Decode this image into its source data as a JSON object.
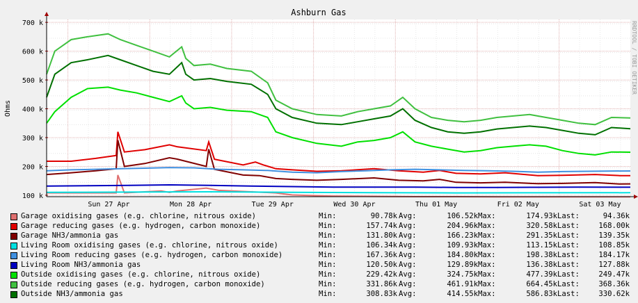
{
  "chart_data": {
    "type": "line",
    "title": "Ashburn Gas",
    "ylabel": "Ohms",
    "watermark": "RRDTOOL / TOBI OETIKER",
    "ylim": [
      95000,
      710000
    ],
    "ytick_values": [
      100000,
      200000,
      300000,
      400000,
      500000,
      600000,
      700000
    ],
    "ytick_labels": [
      "100 k",
      "200 k",
      "300 k",
      "400 k",
      "500 k",
      "600 k",
      "700 k"
    ],
    "xlim": [
      0,
      7.13
    ],
    "xtick_values": [
      0.76,
      1.76,
      2.76,
      3.76,
      4.76,
      5.76,
      6.76
    ],
    "xtick_labels": [
      "Sun 27 Apr",
      "Mon 28 Apr",
      "Tue 29 Apr",
      "Wed 30 Apr",
      "Thu 01 May",
      "Fri 02 May",
      "Sat 03 May"
    ],
    "grid": true,
    "stat_labels": [
      "Min:",
      "Avg:",
      "Max:",
      "Last:"
    ],
    "series": [
      {
        "name": "Garage oxidising gases (e.g. chlorine, nitrous oxide)",
        "color": "#e07070",
        "min": "90.78k",
        "avg": "106.52k",
        "max": "174.93k",
        "last": "94.36k",
        "x": [
          0,
          0.5,
          0.85,
          0.87,
          0.95,
          1.2,
          1.4,
          1.5,
          1.6,
          1.95,
          2.1,
          2.5,
          2.8,
          3.0,
          3.5,
          4.0,
          4.5,
          5.0,
          5.5,
          6.0,
          6.5,
          7.13
        ],
        "y": [
          108000,
          108000,
          108000,
          170000,
          108000,
          112000,
          115000,
          110000,
          115000,
          125000,
          117000,
          112000,
          108000,
          101000,
          97000,
          96000,
          95000,
          95000,
          94500,
          94500,
          94500,
          94360
        ]
      },
      {
        "name": "Garage reducing gases (e.g. hydrogen, carbon monoxide)",
        "color": "#e00000",
        "min": "157.74k",
        "avg": "204.96k",
        "max": "320.58k",
        "last": "168.00k",
        "x": [
          0,
          0.3,
          0.6,
          0.85,
          0.87,
          0.95,
          1.2,
          1.5,
          1.6,
          1.95,
          1.98,
          2.05,
          2.4,
          2.55,
          2.65,
          2.8,
          3.0,
          3.3,
          3.6,
          4.0,
          4.3,
          4.6,
          4.8,
          5.0,
          5.3,
          5.6,
          6.0,
          6.3,
          6.7,
          7.0,
          7.13
        ],
        "y": [
          218000,
          218000,
          228000,
          238000,
          320000,
          250000,
          258000,
          275000,
          268000,
          255000,
          285000,
          225000,
          205000,
          215000,
          205000,
          192000,
          188000,
          183000,
          185000,
          192000,
          185000,
          180000,
          186000,
          176000,
          174000,
          178000,
          168000,
          169000,
          172000,
          168000,
          168000
        ]
      },
      {
        "name": "Garage NH3/ammonia gas",
        "color": "#800000",
        "min": "131.80k",
        "avg": "166.23k",
        "max": "291.35k",
        "last": "139.35k",
        "x": [
          0,
          0.3,
          0.6,
          0.85,
          0.87,
          0.95,
          1.2,
          1.5,
          1.6,
          1.95,
          1.98,
          2.05,
          2.4,
          2.6,
          2.8,
          3.0,
          3.3,
          3.6,
          4.0,
          4.3,
          4.6,
          4.8,
          5.0,
          5.3,
          5.6,
          6.0,
          6.3,
          6.7,
          7.0,
          7.13
        ],
        "y": [
          172000,
          178000,
          185000,
          192000,
          291000,
          200000,
          210000,
          230000,
          225000,
          200000,
          260000,
          190000,
          170000,
          168000,
          158000,
          155000,
          152000,
          155000,
          160000,
          152000,
          150000,
          155000,
          145000,
          143000,
          145000,
          140000,
          141000,
          144000,
          139000,
          139350
        ]
      },
      {
        "name": "Living Room oxidising gases (e.g. chlorine, nitrous oxide)",
        "color": "#00e0e0",
        "min": "106.34k",
        "avg": "109.93k",
        "max": "113.15k",
        "last": "108.85k",
        "x": [
          0,
          1,
          2,
          3,
          4,
          5,
          6,
          7.13
        ],
        "y": [
          110000,
          111000,
          112000,
          110000,
          109000,
          108000,
          108500,
          108850
        ]
      },
      {
        "name": "Living Room reducing gases (e.g. hydrogen, carbon monoxide)",
        "color": "#4090e0",
        "min": "167.36k",
        "avg": "184.80k",
        "max": "198.38k",
        "last": "184.17k",
        "x": [
          0,
          0.3,
          0.6,
          0.9,
          1.2,
          1.5,
          1.8,
          2.1,
          2.4,
          2.7,
          3.0,
          3.3,
          3.6,
          3.9,
          4.2,
          4.5,
          4.8,
          5.1,
          5.4,
          5.7,
          6.0,
          6.3,
          6.6,
          6.9,
          7.13
        ],
        "y": [
          185000,
          188000,
          190000,
          192000,
          194000,
          196000,
          195000,
          190000,
          188000,
          186000,
          180000,
          178000,
          182000,
          185000,
          188000,
          190000,
          188000,
          186000,
          185000,
          183000,
          180000,
          182000,
          183000,
          184000,
          184170
        ]
      },
      {
        "name": "Living Room NH3/ammonia gas",
        "color": "#0000c0",
        "min": "120.50k",
        "avg": "129.89k",
        "max": "136.38k",
        "last": "127.88k",
        "x": [
          0,
          0.5,
          1.0,
          1.5,
          2.0,
          2.5,
          3.0,
          3.5,
          4.0,
          4.5,
          5.0,
          5.5,
          6.0,
          6.5,
          7.13
        ],
        "y": [
          132000,
          133000,
          134000,
          136000,
          134000,
          132000,
          130000,
          128000,
          128000,
          128000,
          127000,
          127000,
          127500,
          128000,
          127880
        ]
      },
      {
        "name": "Outside oxidising gases (e.g. chlorine, nitrous oxide)",
        "color": "#00e000",
        "min": "229.42k",
        "avg": "324.75k",
        "max": "477.39k",
        "last": "249.47k",
        "x": [
          0,
          0.1,
          0.3,
          0.5,
          0.75,
          0.9,
          1.1,
          1.3,
          1.5,
          1.65,
          1.7,
          1.8,
          2.0,
          2.2,
          2.5,
          2.7,
          2.8,
          3.0,
          3.3,
          3.6,
          3.8,
          4.0,
          4.2,
          4.35,
          4.5,
          4.7,
          4.9,
          5.1,
          5.3,
          5.5,
          5.7,
          5.9,
          6.1,
          6.3,
          6.5,
          6.7,
          6.9,
          7.13
        ],
        "y": [
          350000,
          390000,
          440000,
          470000,
          475000,
          465000,
          455000,
          440000,
          425000,
          445000,
          420000,
          400000,
          405000,
          395000,
          390000,
          370000,
          320000,
          300000,
          280000,
          270000,
          285000,
          290000,
          300000,
          320000,
          285000,
          270000,
          260000,
          250000,
          255000,
          265000,
          270000,
          275000,
          270000,
          255000,
          245000,
          240000,
          250000,
          249470
        ]
      },
      {
        "name": "Outside reducing gases (e.g. hydrogen, carbon monoxide)",
        "color": "#40c040",
        "min": "331.86k",
        "avg": "461.91k",
        "max": "664.45k",
        "last": "368.36k",
        "x": [
          0,
          0.1,
          0.3,
          0.5,
          0.75,
          0.9,
          1.1,
          1.3,
          1.5,
          1.65,
          1.7,
          1.8,
          2.0,
          2.2,
          2.5,
          2.7,
          2.8,
          3.0,
          3.3,
          3.6,
          3.8,
          4.0,
          4.2,
          4.35,
          4.5,
          4.7,
          4.9,
          5.1,
          5.3,
          5.5,
          5.7,
          5.9,
          6.1,
          6.3,
          6.5,
          6.7,
          6.9,
          7.13
        ],
        "y": [
          520000,
          600000,
          640000,
          650000,
          660000,
          640000,
          620000,
          600000,
          580000,
          615000,
          575000,
          550000,
          555000,
          540000,
          530000,
          490000,
          430000,
          400000,
          380000,
          375000,
          390000,
          400000,
          410000,
          440000,
          400000,
          370000,
          360000,
          355000,
          360000,
          370000,
          375000,
          380000,
          370000,
          360000,
          350000,
          345000,
          370000,
          368360
        ]
      },
      {
        "name": "Outside NH3/ammonia gas",
        "color": "#007000",
        "min": "308.83k",
        "avg": "414.55k",
        "max": "586.83k",
        "last": "330.62k",
        "x": [
          0,
          0.1,
          0.3,
          0.5,
          0.75,
          0.9,
          1.1,
          1.3,
          1.5,
          1.65,
          1.7,
          1.8,
          2.0,
          2.2,
          2.5,
          2.7,
          2.8,
          3.0,
          3.3,
          3.6,
          3.8,
          4.0,
          4.2,
          4.35,
          4.5,
          4.7,
          4.9,
          5.1,
          5.3,
          5.5,
          5.7,
          5.9,
          6.1,
          6.3,
          6.5,
          6.7,
          6.9,
          7.13
        ],
        "y": [
          440000,
          520000,
          560000,
          570000,
          585000,
          570000,
          550000,
          530000,
          520000,
          560000,
          520000,
          500000,
          505000,
          495000,
          485000,
          450000,
          400000,
          370000,
          350000,
          345000,
          355000,
          365000,
          375000,
          400000,
          360000,
          335000,
          320000,
          315000,
          320000,
          330000,
          335000,
          340000,
          335000,
          325000,
          315000,
          310000,
          335000,
          330620
        ]
      }
    ]
  }
}
